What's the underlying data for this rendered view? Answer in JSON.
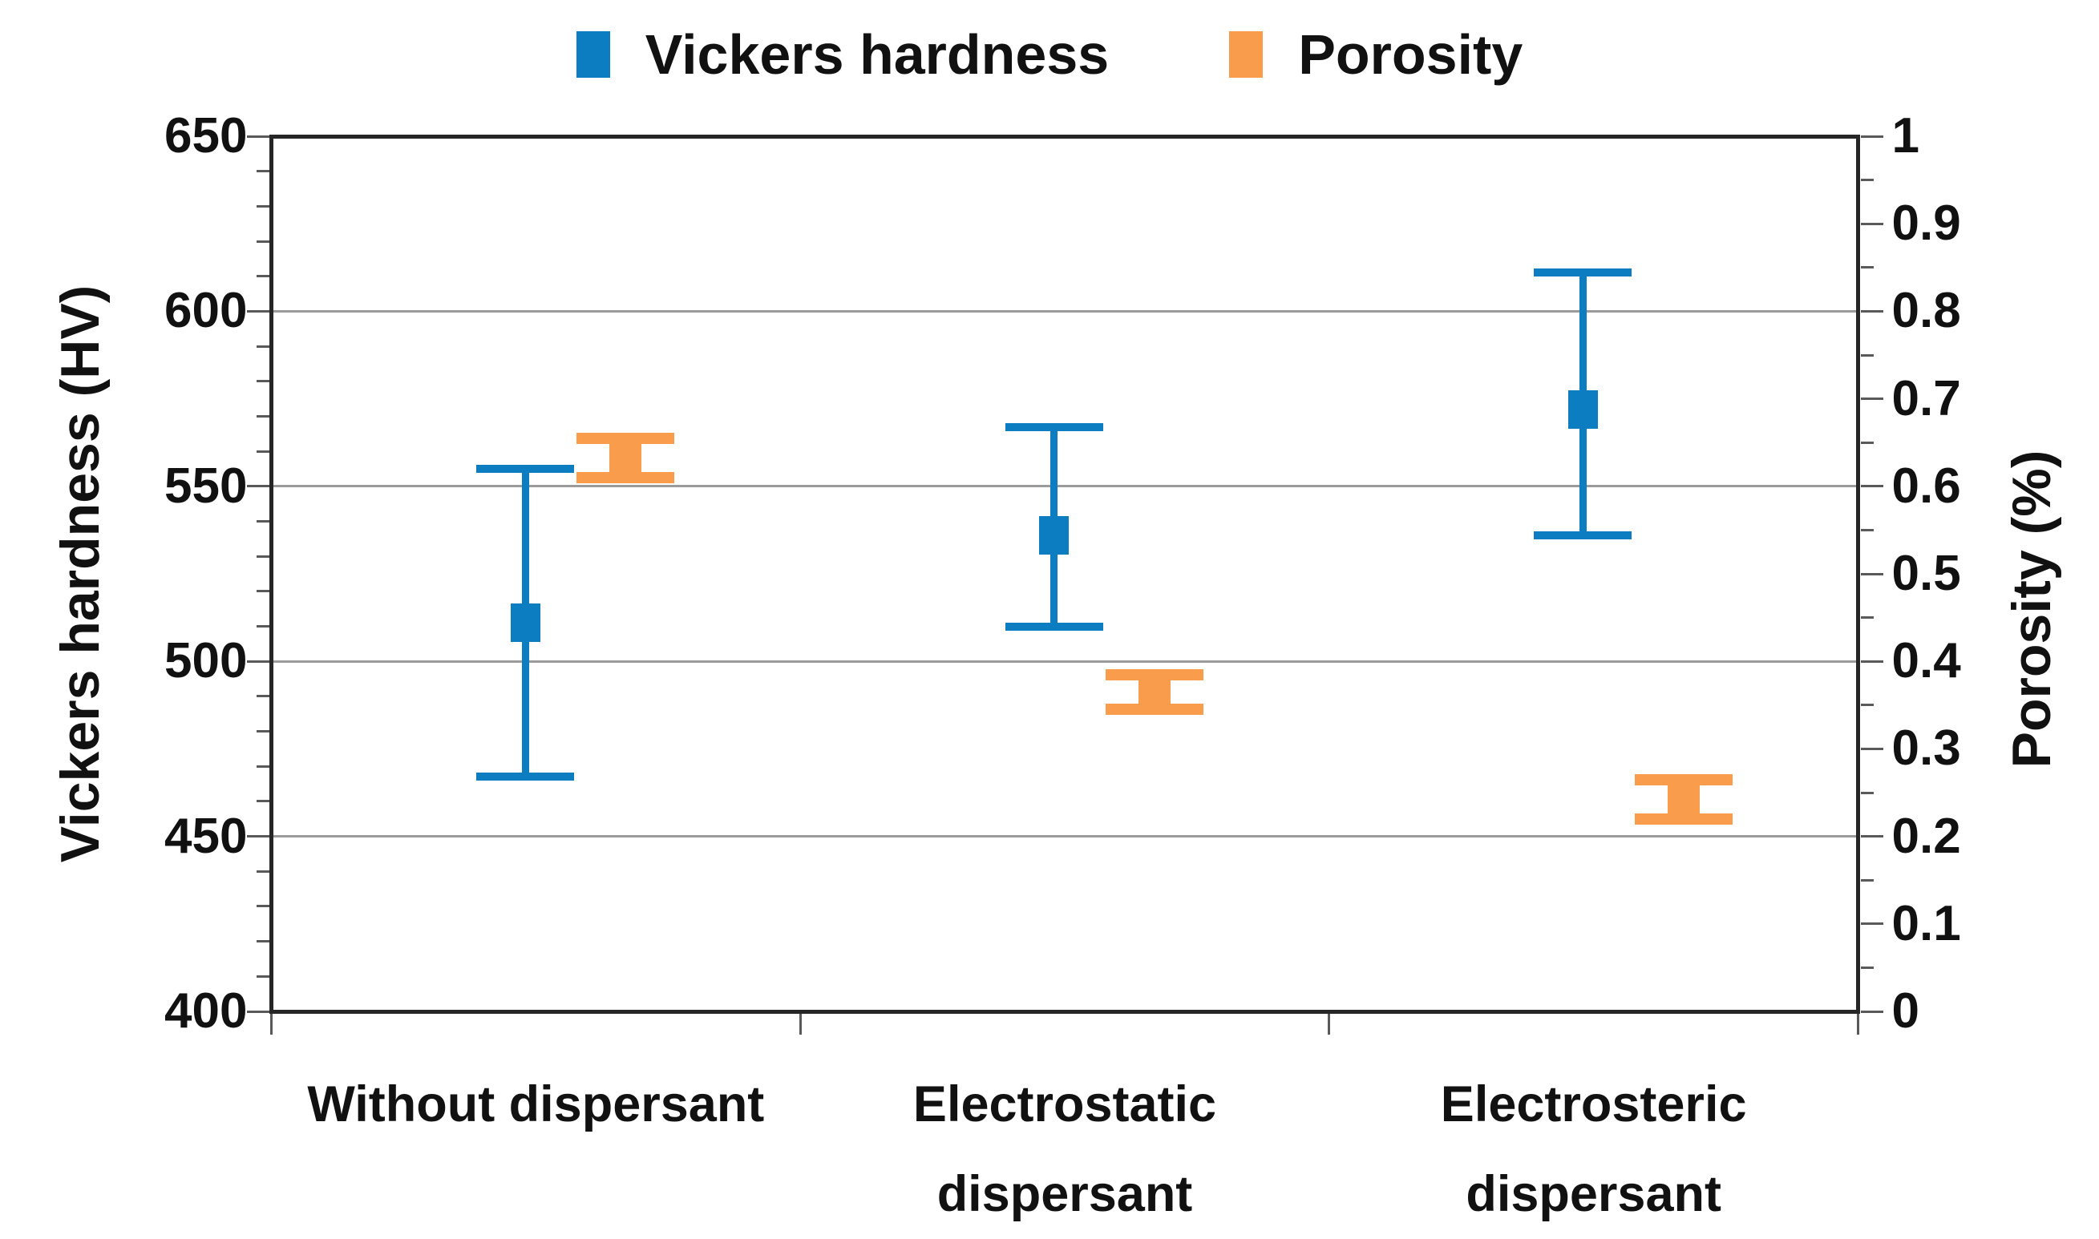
{
  "chart_data": {
    "type": "scatter",
    "title": "",
    "categories": [
      "Without dispersant",
      "Electrostatic dispersant",
      "Electrosteric dispersant"
    ],
    "category_label_lines": [
      [
        "Without dispersant"
      ],
      [
        "Electrostatic",
        "dispersant"
      ],
      [
        "Electrosteric",
        "dispersant"
      ]
    ],
    "series": [
      {
        "name": "Vickers hardness",
        "axis": "left",
        "marker": "square",
        "color": "#0d7dc2",
        "values": [
          511,
          536,
          572
        ],
        "error_upper": [
          555,
          567,
          611
        ],
        "error_lower": [
          467,
          510,
          536
        ]
      },
      {
        "name": "Porosity",
        "axis": "right",
        "marker": "square",
        "color": "#f99d4c",
        "values": [
          0.63,
          0.365,
          0.245
        ],
        "error_upper": [
          0.655,
          0.385,
          0.265
        ],
        "error_lower": [
          0.61,
          0.345,
          0.22
        ]
      }
    ],
    "left_axis": {
      "label": "Vickers hardness (HV)",
      "min": 400,
      "max": 650,
      "major": 50,
      "minor": 10,
      "ticks": [
        "650",
        "600",
        "550",
        "500",
        "450",
        "400"
      ]
    },
    "right_axis": {
      "label": "Porosity (%)",
      "min": 0,
      "max": 1,
      "major": 0.1,
      "minor": 0.05,
      "ticks": [
        "1",
        "0.9",
        "0.8",
        "0.7",
        "0.6",
        "0.5",
        "0.4",
        "0.3",
        "0.2",
        "0.1",
        "0"
      ]
    },
    "legend_position": "top",
    "grid": "horizontal-major",
    "colors": {
      "grid": "#9b9b9b",
      "axis": "#262626",
      "tick": "#595959",
      "text": "#111111",
      "background": "#ffffff"
    }
  }
}
